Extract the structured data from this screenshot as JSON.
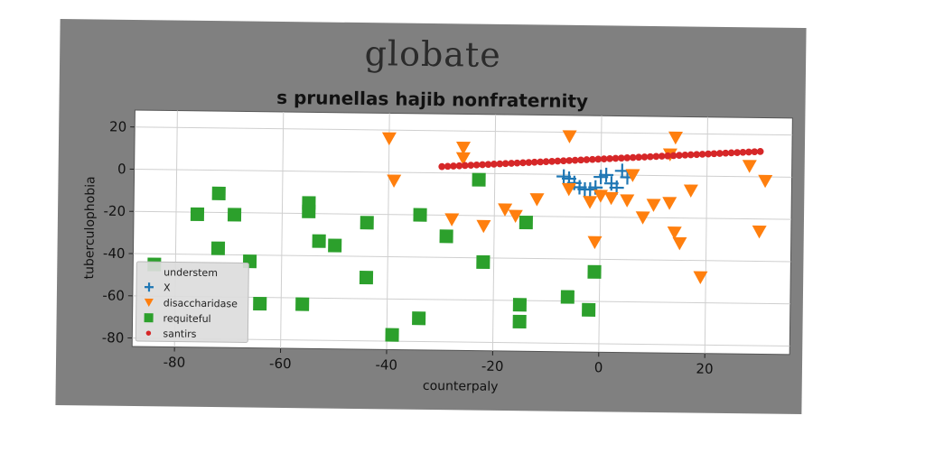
{
  "figure": {
    "suptitle": "globate",
    "background": "#808080"
  },
  "chart_data": {
    "type": "scatter",
    "title": "s prunellas hajib nonfraternity",
    "xlabel": "counterpaly",
    "ylabel": "tuberculophobia",
    "xlim": [
      -88,
      36
    ],
    "ylim": [
      -84,
      28
    ],
    "xticks": [
      -80,
      -60,
      -40,
      -20,
      0,
      20
    ],
    "yticks": [
      -80,
      -60,
      -40,
      -20,
      0,
      20
    ],
    "grid": true,
    "legend_position": "lower-left",
    "series": [
      {
        "name": "understem",
        "marker": "none",
        "color": "#1f77b4",
        "points": []
      },
      {
        "name": "X",
        "marker": "plus",
        "color": "#1f77b4",
        "points": [
          [
            -7,
            -1
          ],
          [
            -6,
            -2
          ],
          [
            -5,
            -4
          ],
          [
            -4,
            -6
          ],
          [
            -3,
            -7
          ],
          [
            -2,
            -7
          ],
          [
            -1,
            -6
          ],
          [
            0,
            -1
          ],
          [
            1,
            0
          ],
          [
            2,
            -4
          ],
          [
            3,
            -6
          ],
          [
            4,
            2
          ],
          [
            5,
            -1
          ]
        ]
      },
      {
        "name": "disaccharidase",
        "marker": "triangle-down",
        "color": "#ff7f0e",
        "points": [
          [
            -40,
            16
          ],
          [
            -39,
            -4
          ],
          [
            -28,
            -22
          ],
          [
            -26,
            12
          ],
          [
            -26,
            7
          ],
          [
            -22,
            -25
          ],
          [
            -18,
            -17
          ],
          [
            -16,
            -20
          ],
          [
            -12,
            -12
          ],
          [
            -6,
            18
          ],
          [
            -6,
            -7
          ],
          [
            -2,
            -13
          ],
          [
            -1,
            -32
          ],
          [
            0,
            -10
          ],
          [
            2,
            -11
          ],
          [
            5,
            -12
          ],
          [
            6,
            0
          ],
          [
            8,
            -20
          ],
          [
            10,
            -14
          ],
          [
            13,
            -13
          ],
          [
            13,
            10
          ],
          [
            14,
            18
          ],
          [
            14,
            -27
          ],
          [
            15,
            -32
          ],
          [
            17,
            -7
          ],
          [
            19,
            -48
          ],
          [
            28,
            5
          ],
          [
            30,
            -26
          ],
          [
            31,
            -2
          ]
        ]
      },
      {
        "name": "requiteful",
        "marker": "square",
        "color": "#2ca02c",
        "points": [
          [
            -84,
            -45
          ],
          [
            -76,
            -21
          ],
          [
            -72,
            -11
          ],
          [
            -72,
            -37
          ],
          [
            -69,
            -21
          ],
          [
            -66,
            -43
          ],
          [
            -64,
            -63
          ],
          [
            -56,
            -63
          ],
          [
            -55,
            -19
          ],
          [
            -55,
            -15
          ],
          [
            -53,
            -33
          ],
          [
            -50,
            -35
          ],
          [
            -44,
            -24
          ],
          [
            -44,
            -50
          ],
          [
            -39,
            -77
          ],
          [
            -34,
            -69
          ],
          [
            -34,
            -20
          ],
          [
            -29,
            -30
          ],
          [
            -23,
            -3
          ],
          [
            -22,
            -42
          ],
          [
            -15,
            -62
          ],
          [
            -15,
            -70
          ],
          [
            -14,
            -23
          ],
          [
            -6,
            -58
          ],
          [
            -2,
            -64
          ],
          [
            -1,
            -46
          ]
        ]
      },
      {
        "name": "santirs",
        "marker": "circle",
        "color": "#d62728",
        "points": [
          [
            -30,
            3
          ],
          [
            -25,
            3.8
          ],
          [
            -20,
            4.5
          ],
          [
            -15,
            5.3
          ],
          [
            -10,
            6
          ],
          [
            -5,
            6.8
          ],
          [
            0,
            7.5
          ],
          [
            5,
            8.3
          ],
          [
            10,
            9
          ],
          [
            15,
            9.8
          ],
          [
            20,
            10.5
          ],
          [
            25,
            11.3
          ],
          [
            30,
            12
          ]
        ]
      }
    ]
  }
}
